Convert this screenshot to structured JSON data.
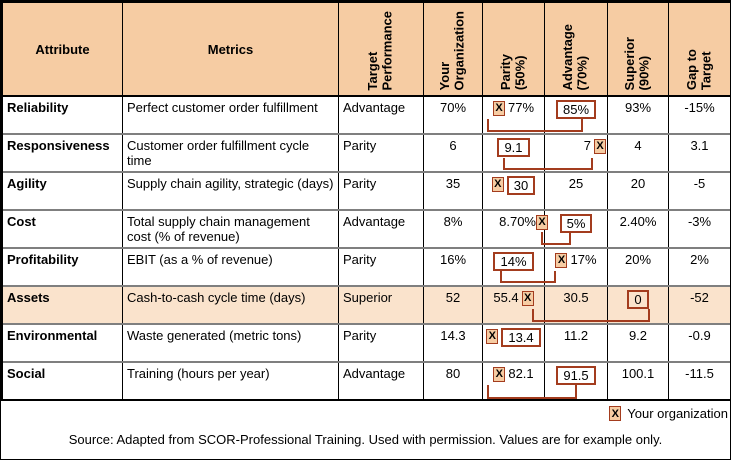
{
  "colors": {
    "header_fill": "#F6CCA3",
    "highlight_row_fill": "#FAE3CC",
    "marker_border": "#A33C1E",
    "row_divider": "#7f7f7f"
  },
  "header": {
    "attribute": "Attribute",
    "metrics": "Metrics",
    "target_performance": "Target\nPerformance",
    "your_organization": "Your\nOrganization",
    "parity": "Parity\n(50%)",
    "advantage": "Advantage\n(70%)",
    "superior": "Superior\n(90%)",
    "gap_to_target": "Gap to\nTarget"
  },
  "rows": [
    {
      "attribute": "Reliability",
      "metric": "Perfect customer order fulfillment",
      "target": "Advantage",
      "your_org": "70%",
      "parity": "77%",
      "advantage": "85%",
      "superior": "93%",
      "gap": "-15%",
      "marker_in": "parity",
      "marker_side": "left",
      "boxed_value": "advantage",
      "connector": true,
      "highlighted": false
    },
    {
      "attribute": "Responsiveness",
      "metric": "Customer order fulfillment cycle time",
      "target": "Parity",
      "your_org": "6",
      "parity": "9.1",
      "advantage": "7",
      "superior": "4",
      "gap": "3.1",
      "marker_in": "advantage",
      "marker_side": "right",
      "boxed_value": "parity",
      "connector": true,
      "highlighted": false
    },
    {
      "attribute": "Agility",
      "metric": "Supply chain agility, strategic (days)",
      "target": "Parity",
      "your_org": "35",
      "parity": "30",
      "advantage": "25",
      "superior": "20",
      "gap": "-5",
      "marker_in": "parity",
      "marker_side": "left",
      "boxed_value": "parity",
      "connector": false,
      "highlighted": false
    },
    {
      "attribute": "Cost",
      "metric": "Total supply chain management cost (% of revenue)",
      "target": "Advantage",
      "your_org": "8%",
      "parity": "8.70%",
      "advantage": "5%",
      "superior": "2.40%",
      "gap": "-3%",
      "marker_in": "parity",
      "marker_side": "right",
      "boxed_value": "advantage",
      "connector": true,
      "highlighted": false
    },
    {
      "attribute": "Profitability",
      "metric": "EBIT (as a % of revenue)",
      "target": "Parity",
      "your_org": "16%",
      "parity": "14%",
      "advantage": "17%",
      "superior": "20%",
      "gap": "2%",
      "marker_in": "advantage",
      "marker_side": "left",
      "boxed_value": "parity",
      "connector": true,
      "highlighted": false
    },
    {
      "attribute": "Assets",
      "metric": "Cash-to-cash cycle time (days)",
      "target": "Superior",
      "your_org": "52",
      "parity": "55.4",
      "advantage": "30.5",
      "superior": "0",
      "gap": "-52",
      "marker_in": "parity",
      "marker_side": "right",
      "boxed_value": "superior",
      "connector": true,
      "highlighted": true
    },
    {
      "attribute": "Environmental",
      "metric": "Waste generated (metric tons)",
      "target": "Parity",
      "your_org": "14.3",
      "parity": "13.4",
      "advantage": "11.2",
      "superior": "9.2",
      "gap": "-0.9",
      "marker_in": "parity",
      "marker_side": "left",
      "boxed_value": "parity",
      "connector": false,
      "highlighted": false
    },
    {
      "attribute": "Social",
      "metric": "Training (hours per year)",
      "target": "Advantage",
      "your_org": "80",
      "parity": "82.1",
      "advantage": "91.5",
      "superior": "100.1",
      "gap": "-11.5",
      "marker_in": "parity",
      "marker_side": "left",
      "boxed_value": "advantage",
      "connector": true,
      "highlighted": false
    }
  ],
  "legend": {
    "marker": "X",
    "label": "Your organization"
  },
  "source": "Source: Adapted from SCOR-Professional Training. Used with permission. Values are for example only."
}
